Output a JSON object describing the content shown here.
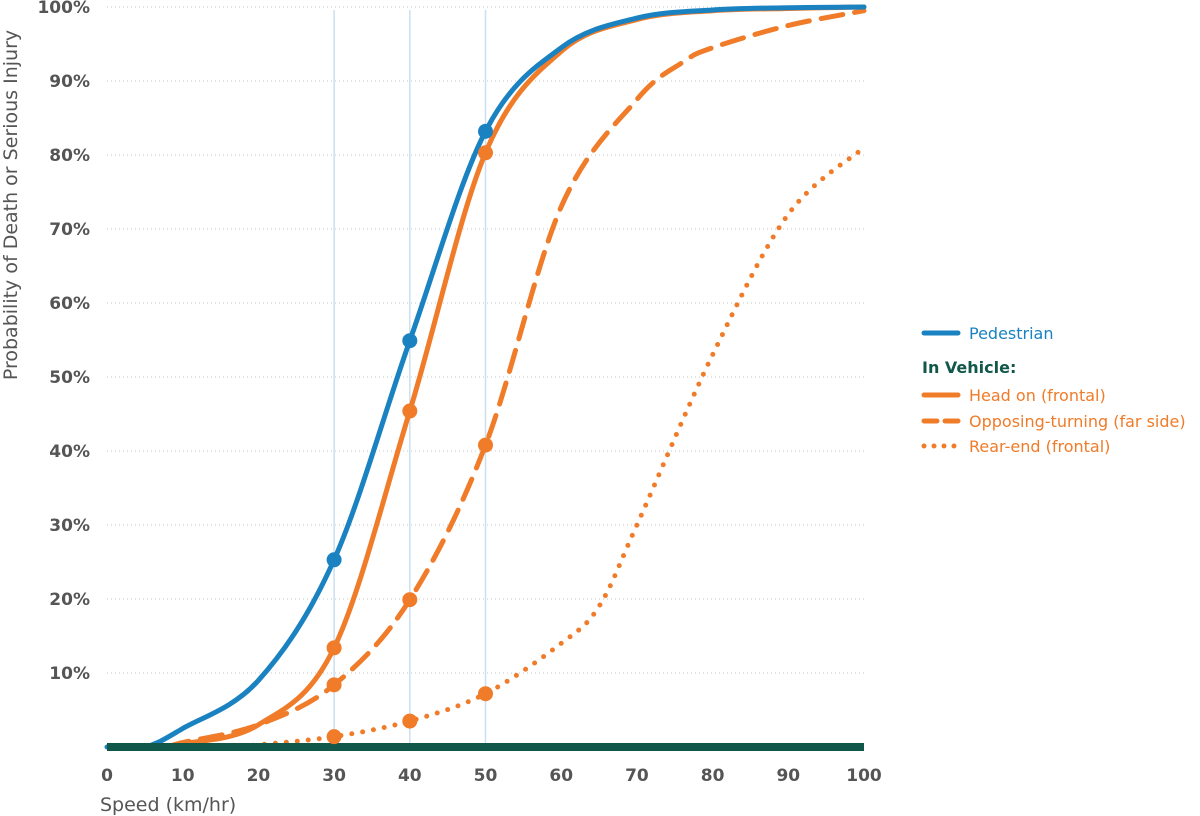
{
  "chart_data": {
    "type": "line",
    "title": "",
    "xlabel": "Speed (km/hr)",
    "ylabel": "Probability of Death or Serious Injury",
    "xlim": [
      0,
      100
    ],
    "ylim": [
      0,
      100
    ],
    "grid": "horizontal dotted",
    "x_ticks": [
      "0",
      "10",
      "20",
      "30",
      "40",
      "50",
      "60",
      "70",
      "80",
      "90",
      "100"
    ],
    "y_ticks": [
      "10%",
      "20%",
      "30%",
      "40%",
      "50%",
      "60%",
      "70%",
      "80%",
      "90%",
      "100%"
    ],
    "reference_lines_x": [
      30,
      40,
      50
    ],
    "legend_position": "right",
    "legend_group_heading": "In Vehicle:",
    "series": [
      {
        "name": "Pedestrian",
        "color": "#1a82c0",
        "style": "solid",
        "x": [
          0,
          5,
          10,
          20,
          30,
          40,
          50,
          60,
          70,
          80,
          90,
          100
        ],
        "values": [
          0,
          0,
          2.5,
          9,
          25.3,
          54.9,
          83.2,
          94.5,
          98.5,
          99.6,
          99.9,
          100
        ],
        "markers": [
          {
            "x": 30,
            "y": 25.3
          },
          {
            "x": 40,
            "y": 54.9
          },
          {
            "x": 50,
            "y": 83.2
          }
        ]
      },
      {
        "name": "Head on (frontal)",
        "color": "#f07b28",
        "style": "solid",
        "x": [
          8,
          10,
          20,
          30,
          40,
          50,
          60,
          70,
          80,
          90,
          100
        ],
        "values": [
          0,
          0.4,
          3,
          13.4,
          45.4,
          80.3,
          94,
          98.3,
          99.5,
          99.8,
          100
        ],
        "markers": [
          {
            "x": 30,
            "y": 13.4
          },
          {
            "x": 40,
            "y": 45.4
          },
          {
            "x": 50,
            "y": 80.3
          }
        ]
      },
      {
        "name": "Opposing-turning (far side)",
        "color": "#f07b28",
        "style": "dashed",
        "x": [
          8,
          10,
          20,
          30,
          40,
          50,
          60,
          70,
          76,
          80,
          90,
          100
        ],
        "values": [
          0,
          0.6,
          3,
          8.4,
          19.9,
          40.8,
          73,
          87.5,
          92.5,
          94.5,
          97.5,
          99.5
        ],
        "markers": [
          {
            "x": 30,
            "y": 8.4
          },
          {
            "x": 40,
            "y": 19.9
          },
          {
            "x": 50,
            "y": 40.8
          }
        ]
      },
      {
        "name": "Rear-end (frontal)",
        "color": "#f07b28",
        "style": "dotted",
        "x": [
          15,
          20,
          30,
          40,
          50,
          60,
          65,
          70,
          80,
          90,
          100
        ],
        "values": [
          0,
          0.3,
          1.4,
          3.5,
          7.2,
          14,
          19,
          30,
          53,
          72,
          81
        ],
        "markers": [
          {
            "x": 30,
            "y": 1.4
          },
          {
            "x": 40,
            "y": 3.5
          },
          {
            "x": 50,
            "y": 7.2
          }
        ]
      }
    ]
  }
}
